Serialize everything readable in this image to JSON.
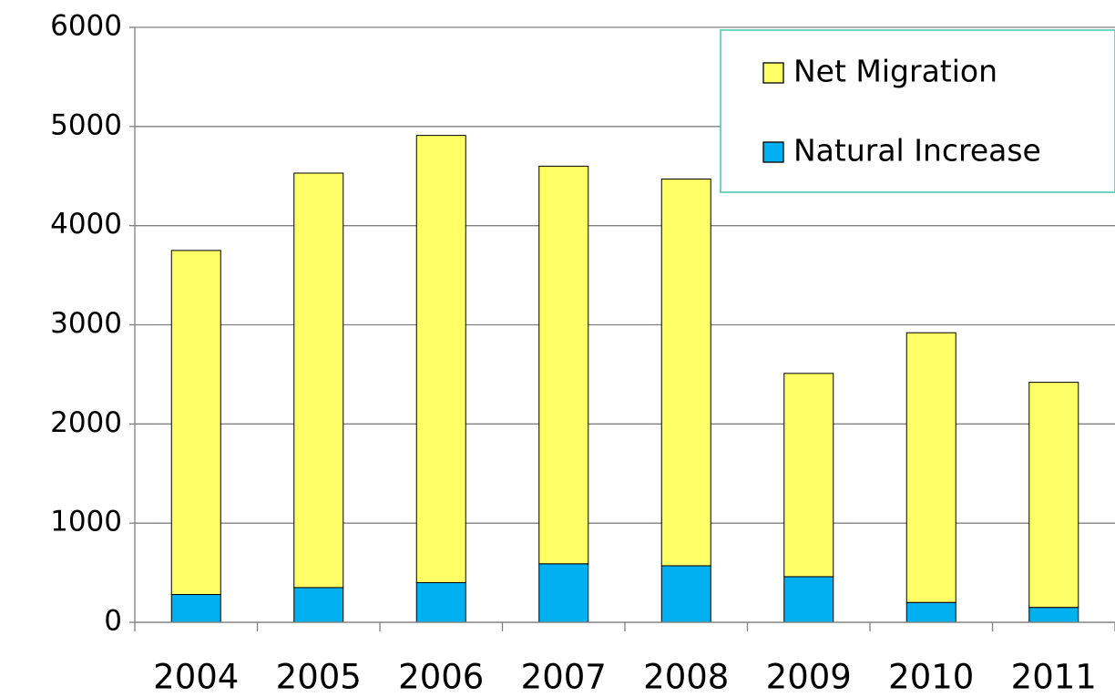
{
  "chart_data": {
    "type": "stacked_bar",
    "categories": [
      "2004",
      "2005",
      "2006",
      "2007",
      "2008",
      "2009",
      "2010",
      "2011"
    ],
    "series": [
      {
        "name": "Natural Increase",
        "color": "#00b0f0",
        "values": [
          280,
          350,
          400,
          590,
          570,
          460,
          200,
          150
        ]
      },
      {
        "name": "Net Migration",
        "color": "#ffff66",
        "values": [
          3470,
          4180,
          4510,
          4010,
          3900,
          2050,
          2720,
          2270
        ]
      }
    ],
    "ylim": [
      0,
      6000
    ],
    "yticks": [
      0,
      1000,
      2000,
      3000,
      4000,
      5000,
      6000
    ],
    "grid": true,
    "legend": "upper right"
  }
}
